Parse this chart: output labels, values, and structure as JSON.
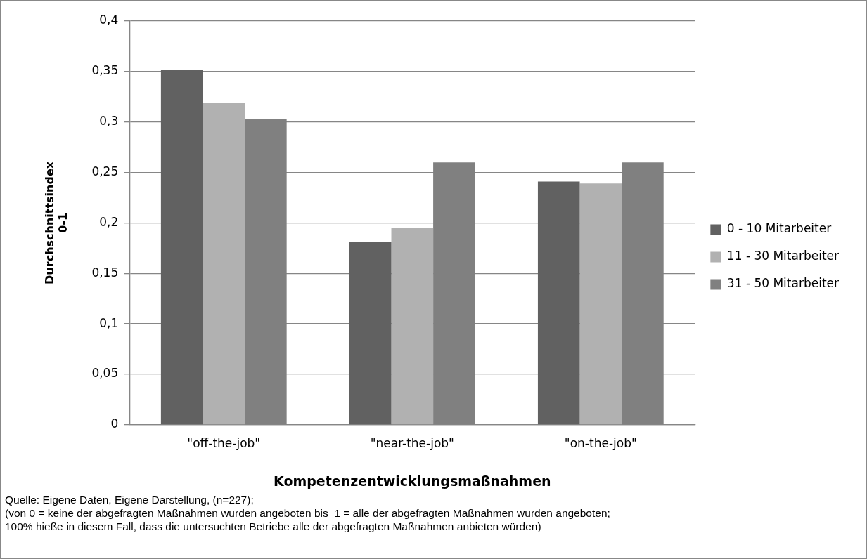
{
  "chart_data": {
    "type": "bar",
    "xlabel": "Kompetenzentwicklungsmaßnahmen",
    "ylabel": "Durchschnittsindex\n0-1",
    "categories": [
      "\"off-the-job\"",
      "\"near-the-job\"",
      "\"on-the-job\""
    ],
    "series": [
      {
        "name": "0 - 10 Mitarbeiter",
        "color": "#616161",
        "values": [
          0.352,
          0.181,
          0.241
        ]
      },
      {
        "name": "11 - 30 Mitarbeiter",
        "color": "#b1b1b1",
        "values": [
          0.319,
          0.195,
          0.239
        ]
      },
      {
        "name": "31 - 50 Mitarbeiter",
        "color": "#808080",
        "values": [
          0.303,
          0.26,
          0.26
        ]
      }
    ],
    "ylim": [
      0,
      0.4
    ],
    "yticks": [
      0,
      {
        "value": 0.05,
        "label": "0,05"
      },
      {
        "value": 0.1,
        "label": "0,1"
      },
      {
        "value": 0.15,
        "label": "0,15"
      },
      {
        "value": 0.2,
        "label": "0,2"
      },
      {
        "value": 0.25,
        "label": "0,25"
      },
      {
        "value": 0.3,
        "label": "0,3"
      },
      {
        "value": 0.35,
        "label": "0,35"
      },
      {
        "value": 0.4,
        "label": "0,4"
      }
    ],
    "grid": "y",
    "legend": "right",
    "annotations": [
      "Quelle: Eigene Daten, Eigene Darstellung, (n=227);",
      "(von 0 = keine der abgefragten Maßnahmen wurden angeboten bis  1 = alle der abgefragten Maßnahmen wurden angeboten;",
      "100% hieße in diesem Fall, dass die untersuchten Betriebe alle der abgefragten Maßnahmen anbieten würden)"
    ]
  }
}
